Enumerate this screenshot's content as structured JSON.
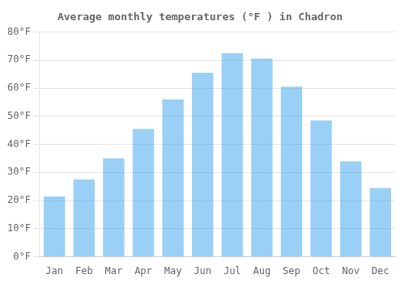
{
  "chart_data": {
    "type": "bar",
    "title": "Average monthly temperatures (°F ) in Chadron",
    "categories": [
      "Jan",
      "Feb",
      "Mar",
      "Apr",
      "May",
      "Jun",
      "Jul",
      "Aug",
      "Sep",
      "Oct",
      "Nov",
      "Dec"
    ],
    "values": [
      21.5,
      27.5,
      35.0,
      45.5,
      56.0,
      65.5,
      72.5,
      70.5,
      60.5,
      48.5,
      34.0,
      24.5
    ],
    "ylim": [
      0,
      80
    ],
    "yticks": [
      {
        "value": 0,
        "label": "0°F"
      },
      {
        "value": 10,
        "label": "10°F"
      },
      {
        "value": 20,
        "label": "20°F"
      },
      {
        "value": 30,
        "label": "30°F"
      },
      {
        "value": 40,
        "label": "40°F"
      },
      {
        "value": 50,
        "label": "50°F"
      },
      {
        "value": 60,
        "label": "60°F"
      },
      {
        "value": 70,
        "label": "70°F"
      },
      {
        "value": 80,
        "label": "80°F"
      }
    ],
    "grid": true
  }
}
